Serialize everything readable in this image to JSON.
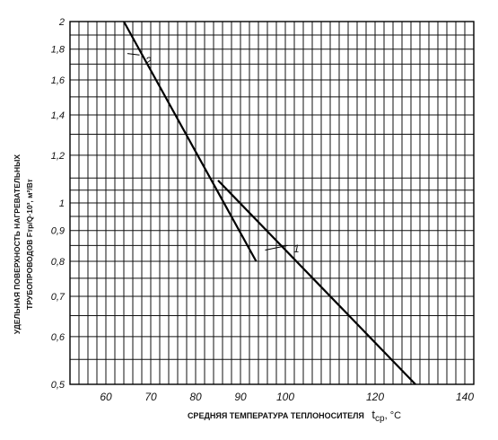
{
  "chart_data": {
    "type": "line",
    "y_scale": "log",
    "xlim": [
      52,
      142
    ],
    "ylim": [
      0.5,
      2
    ],
    "x_ticks": [
      {
        "value": 60,
        "label": "60"
      },
      {
        "value": 70,
        "label": "70"
      },
      {
        "value": 80,
        "label": "80"
      },
      {
        "value": 90,
        "label": "90"
      },
      {
        "value": 100,
        "label": "100"
      },
      {
        "value": 120,
        "label": "120"
      },
      {
        "value": 140,
        "label": "140"
      }
    ],
    "y_ticks": [
      {
        "value": 0.5,
        "label": "0,5"
      },
      {
        "value": 0.6,
        "label": "0,6"
      },
      {
        "value": 0.7,
        "label": "0,7"
      },
      {
        "value": 0.8,
        "label": "0,8"
      },
      {
        "value": 0.9,
        "label": "0,9"
      },
      {
        "value": 1.0,
        "label": "1"
      },
      {
        "value": 1.2,
        "label": "1,2"
      },
      {
        "value": 1.4,
        "label": "1,4"
      },
      {
        "value": 1.6,
        "label": "1,6"
      },
      {
        "value": 1.8,
        "label": "1,8"
      },
      {
        "value": 2.0,
        "label": "2"
      }
    ],
    "grid_x": [
      54,
      56,
      58,
      60,
      62,
      64,
      66,
      68,
      70,
      72,
      74,
      76,
      78,
      80,
      82,
      84,
      86,
      88,
      90,
      92,
      94,
      96,
      98,
      100,
      102,
      104,
      106,
      108,
      110,
      112,
      114,
      116,
      118,
      120,
      122,
      124,
      126,
      128,
      130,
      132,
      134,
      136,
      138,
      140
    ],
    "grid_y": [
      0.5,
      0.55,
      0.6,
      0.65,
      0.7,
      0.75,
      0.8,
      0.85,
      0.9,
      0.95,
      1.0,
      1.05,
      1.1,
      1.2,
      1.3,
      1.4,
      1.5,
      1.6,
      1.7,
      1.8,
      1.9,
      2.0
    ],
    "series": [
      {
        "name": "1",
        "points": [
          {
            "x": 85,
            "y": 1.09
          },
          {
            "x": 129,
            "y": 0.5
          }
        ],
        "label_at": {
          "x": 101,
          "y": 0.84
        }
      },
      {
        "name": "2",
        "points": [
          {
            "x": 64,
            "y": 2.0
          },
          {
            "x": 93.5,
            "y": 0.8
          }
        ],
        "label_at": {
          "x": 68,
          "y": 1.72
        }
      }
    ],
    "xlabel": "СРЕДНЯЯ ТЕМПЕРАТУРА ТЕПЛОНОСИТЕЛЯ",
    "xlabel_symbol": "t",
    "xlabel_subscript": "ср",
    "xlabel_unit": ", °C",
    "ylabel_line1": "УДЕЛЬНАЯ ПОВЕРХНОСТЬ НАГРЕВАТЕЛЬНЫХ",
    "ylabel_line2": "ТРУБОПРОВОДОВ  Fтр/Q·10³, м²/Вт",
    "grid": true
  }
}
